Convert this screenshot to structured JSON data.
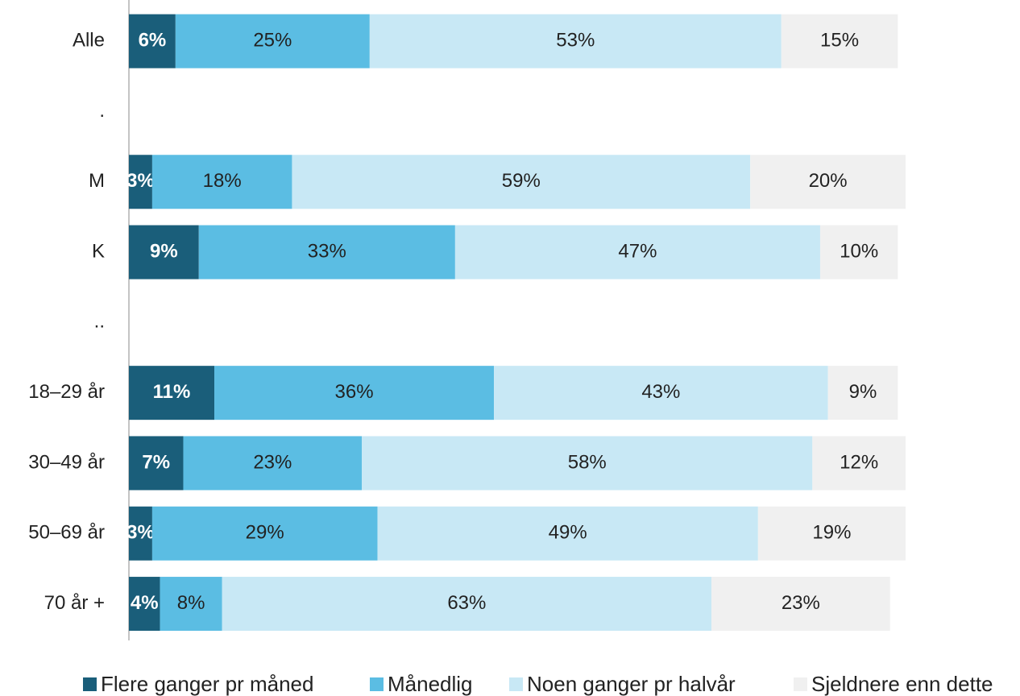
{
  "chart_data": {
    "type": "stacked-barh",
    "categories": [
      "Alle",
      ".",
      "M",
      "K",
      "..",
      "18–29 år",
      "30–49 år",
      "50–69 år",
      "70 år +"
    ],
    "series": [
      {
        "name": "Flere ganger pr måned",
        "color": "#1a5e7a",
        "values": [
          6,
          null,
          3,
          9,
          null,
          11,
          7,
          3,
          4
        ],
        "value_labels": [
          "6%",
          null,
          "3%",
          "9%",
          null,
          "11%",
          "7%",
          "3%",
          "4%"
        ]
      },
      {
        "name": "Månedlig",
        "color": "#5bbde3",
        "values": [
          25,
          null,
          18,
          33,
          null,
          36,
          23,
          29,
          8
        ],
        "value_labels": [
          "25%",
          null,
          "18%",
          "33%",
          null,
          "36%",
          "23%",
          "29%",
          "8%"
        ]
      },
      {
        "name": "Noen ganger pr halvår",
        "color": "#c8e8f5",
        "values": [
          53,
          null,
          59,
          47,
          null,
          43,
          58,
          49,
          63
        ],
        "value_labels": [
          "53%",
          null,
          "59%",
          "47%",
          null,
          "43%",
          "58%",
          "49%",
          "63%"
        ]
      },
      {
        "name": "Sjeldnere enn dette",
        "color": "#f0f0f0",
        "values": [
          15,
          null,
          20,
          10,
          null,
          9,
          12,
          19,
          23
        ],
        "value_labels": [
          "15%",
          null,
          "20%",
          "10%",
          null,
          "9%",
          "12%",
          "19%",
          "23%"
        ]
      }
    ],
    "xlim": [
      0,
      100
    ]
  }
}
